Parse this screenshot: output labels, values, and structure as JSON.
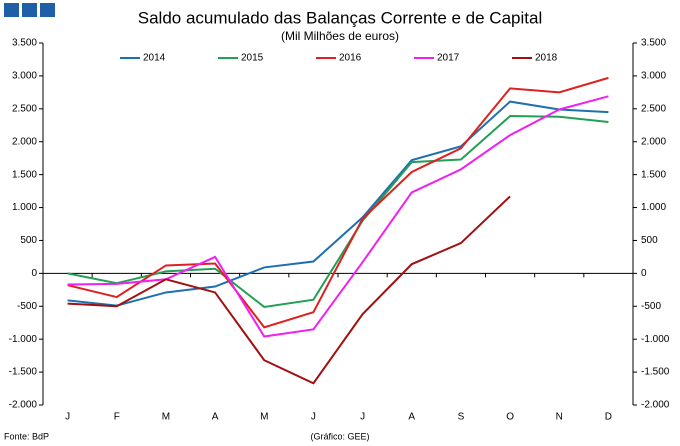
{
  "chart_data": {
    "type": "line",
    "title": "Saldo acumulado das Balanças Corrente e de Capital",
    "subtitle": "(Mil Milhões de euros)",
    "source": "Fonte: BdP",
    "credit": "(Gráfico: GEE)",
    "categories": [
      "J",
      "F",
      "M",
      "A",
      "M",
      "J",
      "J",
      "A",
      "S",
      "O",
      "N",
      "D"
    ],
    "series": [
      {
        "name": "2014",
        "color": "#1f6fb0",
        "values": [
          -410,
          -490,
          -290,
          -200,
          90,
          180,
          850,
          1720,
          1930,
          2610,
          2490,
          2450
        ]
      },
      {
        "name": "2015",
        "color": "#22a055",
        "values": [
          0,
          -150,
          30,
          70,
          -510,
          -400,
          800,
          1690,
          1730,
          2390,
          2380,
          2300
        ]
      },
      {
        "name": "2016",
        "color": "#e02020",
        "values": [
          -180,
          -360,
          120,
          150,
          -820,
          -590,
          830,
          1540,
          1900,
          2810,
          2750,
          2970
        ]
      },
      {
        "name": "2017",
        "color": "#f020f0",
        "values": [
          -170,
          -160,
          -90,
          250,
          -960,
          -850,
          170,
          1230,
          1580,
          2100,
          2490,
          2690
        ]
      },
      {
        "name": "2018",
        "color": "#a01010",
        "values": [
          -460,
          -500,
          -90,
          -290,
          -1320,
          -1670,
          -620,
          140,
          460,
          1170,
          null,
          null
        ]
      }
    ],
    "ylim": [
      -2000,
      3500
    ],
    "yticks": [
      {
        "value": -2000,
        "label": "-2.000"
      },
      {
        "value": -1500,
        "label": "-1.500"
      },
      {
        "value": -1000,
        "label": "-1.000"
      },
      -500,
      0,
      500,
      {
        "value": 1000,
        "label": "1.000"
      },
      {
        "value": 1500,
        "label": "1.500"
      },
      {
        "value": 2000,
        "label": "2.000"
      },
      {
        "value": 2500,
        "label": "2.500"
      },
      {
        "value": 3000,
        "label": "3.000"
      },
      {
        "value": 3500,
        "label": "3.500"
      }
    ],
    "y2lim": [
      -2000,
      3500
    ],
    "y2ticks": [
      {
        "value": -2000,
        "label": "-2.000"
      },
      {
        "value": -1500,
        "label": "-1.500"
      },
      {
        "value": -1000,
        "label": "-1.000"
      },
      -500,
      0,
      500,
      {
        "value": 1000,
        "label": "1.000"
      },
      {
        "value": 1500,
        "label": "1.500"
      },
      {
        "value": 2000,
        "label": "2.000"
      },
      {
        "value": 2500,
        "label": "2.500"
      },
      {
        "value": 3000,
        "label": "3.000"
      },
      {
        "value": 3500,
        "label": "3.500"
      }
    ],
    "legend": "top",
    "grid": false
  }
}
